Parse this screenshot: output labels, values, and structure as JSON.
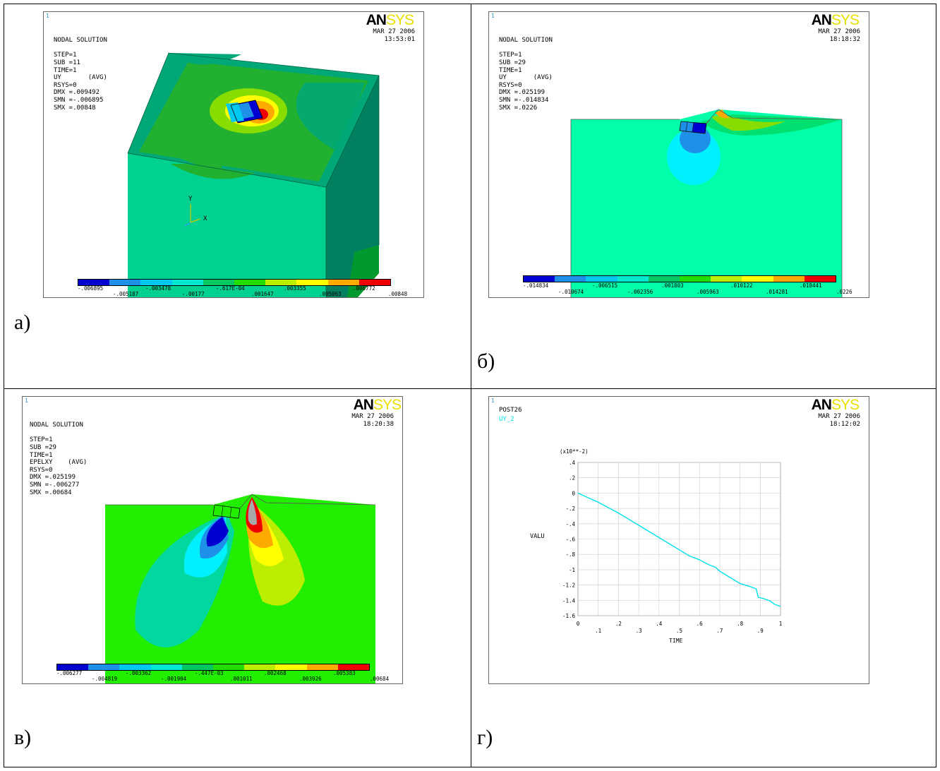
{
  "panels": [
    {
      "id": "a",
      "caption": "а)",
      "number": "1",
      "header": [
        "NODAL SOLUTION",
        "",
        "STEP=1",
        "SUB =11",
        "TIME=1",
        "UY       (AVG)",
        "RSYS=0",
        "DMX =.009492",
        "SMN =-.006895",
        "SMX =.00848"
      ],
      "logo": [
        "AN",
        "SYS"
      ],
      "date": [
        "MAR 27 2006",
        "13:53:01"
      ],
      "legend_top": [
        "-.006895",
        "-.003478",
        "-.617E-04",
        ".003355",
        ".006772"
      ],
      "legend_bottom": [
        "-.005187",
        "-.00177",
        ".001647",
        ".005063",
        ".00848"
      ],
      "axis_y": "Y",
      "axis_x": "X"
    },
    {
      "id": "b",
      "caption": "б)",
      "number": "1",
      "header": [
        "NODAL SOLUTION",
        "",
        "STEP=1",
        "SUB =29",
        "TIME=1",
        "UY       (AVG)",
        "RSYS=0",
        "DMX =.025199",
        "SMN =-.014834",
        "SMX =.0226"
      ],
      "logo": [
        "AN",
        "SYS"
      ],
      "date": [
        "MAR 27 2006",
        "18:18:32"
      ],
      "legend_top": [
        "-.014834",
        "-.006515",
        ".001803",
        ".010122",
        ".018441"
      ],
      "legend_bottom": [
        "-.010674",
        "-.002356",
        ".005963",
        ".014281",
        ".0226"
      ]
    },
    {
      "id": "c",
      "caption": "в)",
      "number": "1",
      "header": [
        "NODAL SOLUTION",
        "",
        "STEP=1",
        "SUB =29",
        "TIME=1",
        "EPELXY    (AVG)",
        "RSYS=0",
        "DMX =.025199",
        "SMN =-.006277",
        "SMX =.00684"
      ],
      "logo": [
        "AN",
        "SYS"
      ],
      "date": [
        "MAR 27 2006",
        "18:20:38"
      ],
      "legend_top": [
        "-.006277",
        "-.003362",
        "-.447E-03",
        ".002468",
        ".005383"
      ],
      "legend_bottom": [
        "-.004819",
        "-.001904",
        ".001011",
        ".003926",
        ".00684"
      ]
    },
    {
      "id": "d",
      "caption": "г)",
      "number": "1",
      "header": [
        "POST26"
      ],
      "series_name": "UY_2",
      "logo": [
        "AN",
        "SYS"
      ],
      "date": [
        "MAR 27 2006",
        "18:12:02"
      ]
    }
  ],
  "legend_colors": [
    "#0000d0",
    "#1e90e8",
    "#00c8f0",
    "#00e8d0",
    "#00c860",
    "#22dd00",
    "#bbee00",
    "#ffff00",
    "#ffaa00",
    "#ee0000"
  ],
  "chart_data": {
    "type": "line",
    "title": "",
    "xlabel": "TIME",
    "ylabel": "VALU",
    "y_multiplier_label": "(x10**-2)",
    "xlim": [
      0,
      1
    ],
    "ylim": [
      -1.6,
      0.4
    ],
    "x_ticks_major": [
      "0",
      ".2",
      ".4",
      ".6",
      ".8",
      "1"
    ],
    "x_ticks_minor": [
      ".1",
      ".3",
      ".5",
      ".7",
      ".9"
    ],
    "y_ticks": [
      ".4",
      ".2",
      "0",
      "-.2",
      "-.4",
      "-.6",
      "-.8",
      "-1",
      "-1.2",
      "-1.4",
      "-1.6"
    ],
    "grid": true,
    "series": [
      {
        "name": "UY_2",
        "color": "#00e0e8",
        "x": [
          0,
          0.05,
          0.1,
          0.15,
          0.2,
          0.25,
          0.3,
          0.35,
          0.4,
          0.45,
          0.5,
          0.55,
          0.6,
          0.62,
          0.65,
          0.68,
          0.7,
          0.75,
          0.8,
          0.85,
          0.88,
          0.89,
          0.92,
          0.95,
          0.97,
          1.0
        ],
        "y": [
          0,
          -0.06,
          -0.12,
          -0.19,
          -0.26,
          -0.34,
          -0.42,
          -0.5,
          -0.58,
          -0.66,
          -0.74,
          -0.82,
          -0.87,
          -0.9,
          -0.94,
          -0.97,
          -1.02,
          -1.1,
          -1.18,
          -1.22,
          -1.25,
          -1.36,
          -1.38,
          -1.41,
          -1.45,
          -1.48
        ]
      }
    ]
  }
}
